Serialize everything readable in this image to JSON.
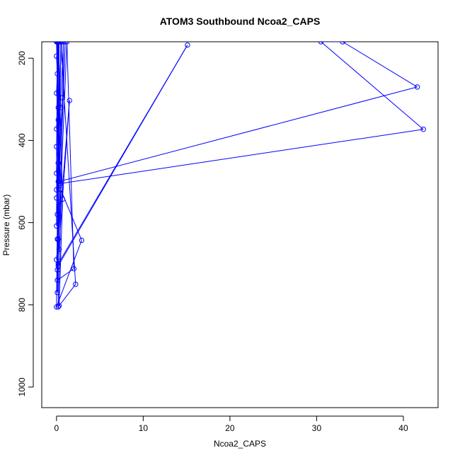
{
  "chart_data": {
    "type": "line",
    "title": "ATOM3 Southbound Ncoa2_CAPS",
    "xlabel": "Ncoa2_CAPS",
    "ylabel": "Pressure (mbar)",
    "xlim": [
      -1.7,
      44.0
    ],
    "ylim": [
      1050,
      160
    ],
    "y_reversed": true,
    "xticks": [
      0,
      10,
      20,
      30,
      40
    ],
    "yticks": [
      200,
      400,
      600,
      800,
      1000
    ],
    "grid": false,
    "colors": {
      "series": "#0000ff",
      "axis": "#000000"
    },
    "series": [
      {
        "values": [
          [
            0,
            195
          ],
          [
            0.1,
            238
          ],
          [
            0,
            285
          ],
          [
            0.2,
            320
          ],
          [
            0.1,
            160
          ],
          [
            0.5,
            320
          ],
          [
            0,
            160
          ],
          [
            0.2,
            350
          ],
          [
            0,
            372
          ],
          [
            0.6,
            160
          ],
          [
            0,
            415
          ],
          [
            0.2,
            455
          ],
          [
            0,
            480
          ],
          [
            0.1,
            160
          ],
          [
            0.2,
            500
          ],
          [
            0,
            520
          ],
          [
            0.8,
            160
          ],
          [
            0.7,
            296
          ],
          [
            0,
            540
          ],
          [
            0.1,
            580
          ],
          [
            1.0,
            160
          ],
          [
            0.2,
            640
          ],
          [
            0.3,
            665
          ],
          [
            0,
            690
          ],
          [
            1.5,
            303
          ],
          [
            0.1,
            715
          ],
          [
            1.2,
            160
          ],
          [
            2.0,
            712
          ],
          [
            0.1,
            740
          ],
          [
            0.3,
            160
          ],
          [
            0.1,
            770
          ],
          [
            0.5,
            160
          ],
          [
            2.2,
            750
          ],
          [
            0.2,
            805
          ],
          [
            0.3,
            160
          ],
          [
            0,
            805
          ],
          [
            2.9,
            643
          ],
          [
            0.5,
            520
          ],
          [
            0.3,
            802
          ],
          [
            0.7,
            543
          ],
          [
            0.2,
            160
          ],
          [
            0.4,
            505
          ],
          [
            42.3,
            373
          ],
          [
            30.5,
            160
          ],
          [
            33.0,
            160
          ],
          [
            41.6,
            270
          ],
          [
            0.3,
            500
          ],
          [
            0.1,
            640
          ],
          [
            0.2,
            700
          ],
          [
            15.1,
            168
          ],
          [
            0.2,
            705
          ],
          [
            0.1,
            160
          ],
          [
            0,
            608
          ]
        ]
      }
    ]
  }
}
